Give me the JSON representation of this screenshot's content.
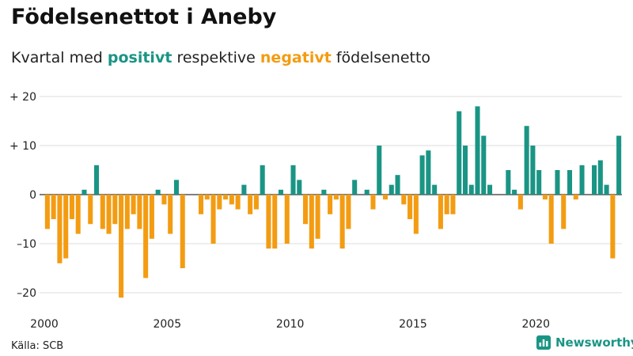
{
  "header": {
    "title": "Födelsenettot i Aneby",
    "subtitle_pre": "Kvartal med ",
    "subtitle_pos": "positivt",
    "subtitle_mid": " respektive ",
    "subtitle_neg": "negativt",
    "subtitle_post": " födelsenetto"
  },
  "footer": {
    "source": "Källa: SCB",
    "brand": "Newsworthy"
  },
  "colors": {
    "positive": "#1a9585",
    "negative": "#f39c12",
    "grid": "#dddddd",
    "axis": "#333333"
  },
  "chart_data": {
    "type": "bar",
    "title": "Födelsenettot i Aneby",
    "subtitle": "Kvartal med positivt respektive negativt födelsenetto",
    "xlabel": "",
    "ylabel": "",
    "x_start": 2000,
    "x_step": 0.25,
    "xlim": [
      2000,
      2023.75
    ],
    "ylim": [
      -22,
      20
    ],
    "y_ticks": [
      {
        "value": 20,
        "label": "+ 20"
      },
      {
        "value": 10,
        "label": "+ 10"
      },
      {
        "value": 0,
        "label": "0"
      },
      {
        "value": -10,
        "label": "–10"
      },
      {
        "value": -20,
        "label": "–20"
      }
    ],
    "x_ticks": [
      {
        "value": 2000,
        "label": "2000"
      },
      {
        "value": 2005,
        "label": "2005"
      },
      {
        "value": 2010,
        "label": "2010"
      },
      {
        "value": 2015,
        "label": "2015"
      },
      {
        "value": 2020,
        "label": "2020"
      }
    ],
    "values": [
      -7,
      -5,
      -14,
      -13,
      -5,
      -8,
      1,
      -6,
      6,
      -7,
      -8,
      -6,
      -21,
      -7,
      -4,
      -7,
      -17,
      -9,
      1,
      -2,
      -8,
      3,
      -15,
      0,
      0,
      -4,
      -1,
      -10,
      -3,
      -1,
      -2,
      -3,
      2,
      -4,
      -3,
      6,
      -11,
      -11,
      1,
      -10,
      6,
      3,
      -6,
      -11,
      -9,
      1,
      -4,
      -1,
      -11,
      -7,
      3,
      0,
      1,
      -3,
      10,
      -1,
      2,
      4,
      -2,
      -5,
      -8,
      8,
      9,
      2,
      -7,
      -4,
      -4,
      17,
      10,
      2,
      18,
      12,
      2,
      0,
      0,
      5,
      1,
      -3,
      14,
      10,
      5,
      -1,
      -10,
      5,
      -7,
      5,
      -1,
      6,
      0,
      6,
      7,
      2,
      -13,
      12
    ]
  }
}
